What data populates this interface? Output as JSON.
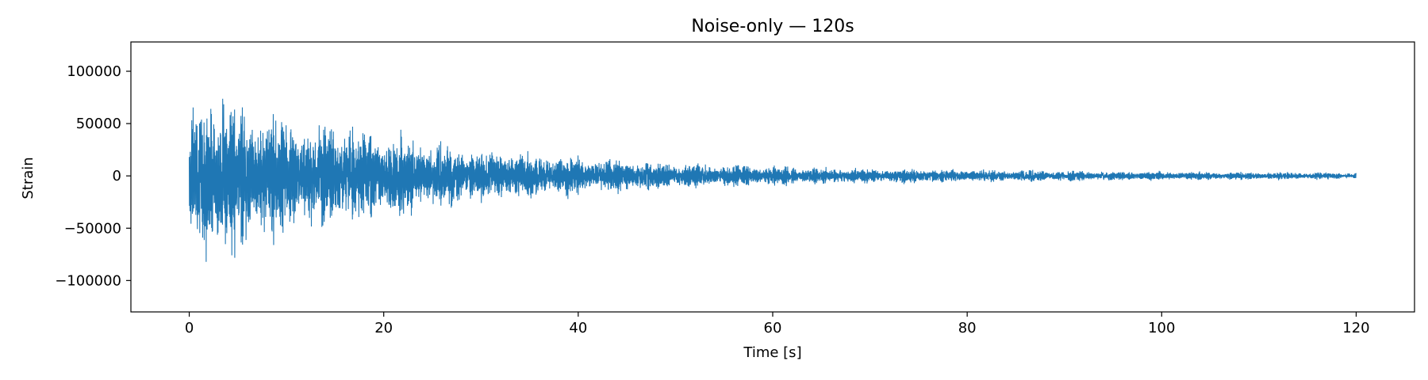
{
  "chart_data": {
    "type": "line",
    "title": "Noise-only — 120s",
    "xlabel": "Time [s]",
    "ylabel": "Strain",
    "xlim": [
      -6,
      126
    ],
    "ylim": [
      -130000,
      128000
    ],
    "xticks": [
      0,
      20,
      40,
      60,
      80,
      100,
      120
    ],
    "xtick_labels": [
      "0",
      "20",
      "40",
      "60",
      "80",
      "100",
      "120"
    ],
    "yticks": [
      100000,
      50000,
      0,
      -50000,
      -100000
    ],
    "ytick_labels": [
      "100000",
      "50000",
      "0",
      "−50000",
      "−100000"
    ],
    "grid": false,
    "series": [
      {
        "color": "#1f77b4",
        "duration_s": 120,
        "envelope": {
          "t": [
            0,
            1.5,
            5,
            10,
            15,
            20,
            30,
            40,
            50,
            60,
            70,
            80,
            90,
            100,
            110,
            120
          ],
          "amplitude": [
            60000,
            110000,
            85000,
            68000,
            60000,
            48000,
            30000,
            22000,
            15000,
            11000,
            9000,
            7000,
            6000,
            5000,
            4500,
            4000
          ]
        }
      }
    ]
  }
}
